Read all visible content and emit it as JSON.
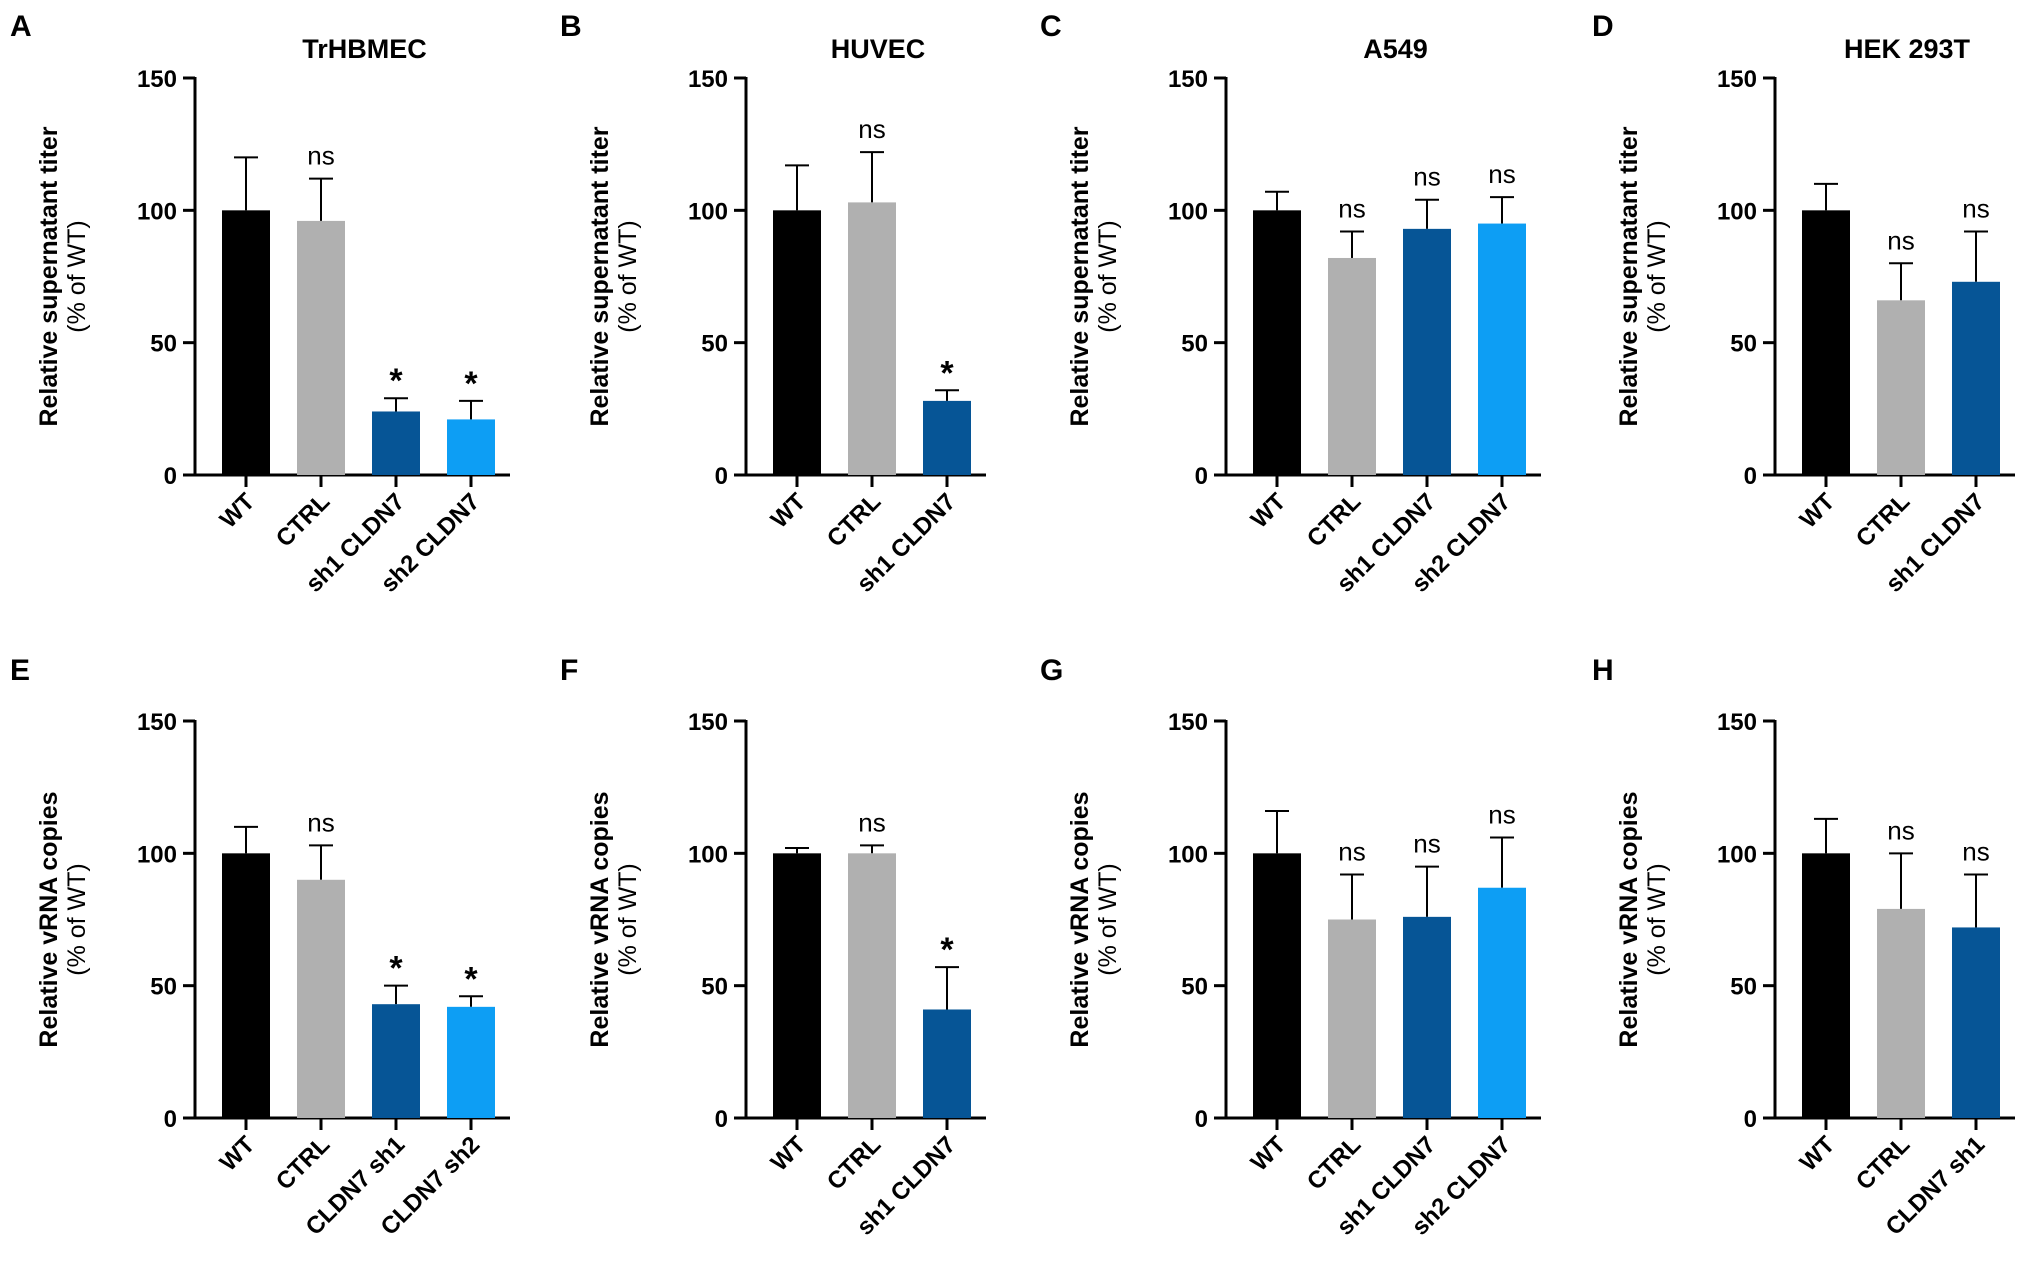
{
  "chart_data": [
    {
      "id": "A",
      "type": "bar",
      "title": "TrHBMEC",
      "ylabel": "Relative supernatant titer",
      "ylabel_sub": "(% of WT)",
      "ylim": [
        0,
        150
      ],
      "yticks": [
        0,
        50,
        100,
        150
      ],
      "categories": [
        "WT",
        "CTRL",
        "sh1 CLDN7",
        "sh2 CLDN7"
      ],
      "values": [
        100,
        96,
        24,
        21
      ],
      "errors": [
        20,
        16,
        5,
        7
      ],
      "colors": [
        "#000000",
        "#b0b0b0",
        "#065596",
        "#0d9ef4"
      ],
      "significance": [
        "",
        "ns",
        "*",
        "*"
      ]
    },
    {
      "id": "B",
      "type": "bar",
      "title": "HUVEC",
      "ylabel": "Relative supernatant titer",
      "ylabel_sub": "(% of WT)",
      "ylim": [
        0,
        150
      ],
      "yticks": [
        0,
        50,
        100,
        150
      ],
      "categories": [
        "WT",
        "CTRL",
        "sh1 CLDN7"
      ],
      "values": [
        100,
        103,
        28
      ],
      "errors": [
        17,
        19,
        4
      ],
      "colors": [
        "#000000",
        "#b0b0b0",
        "#065596"
      ],
      "significance": [
        "",
        "ns",
        "*"
      ]
    },
    {
      "id": "C",
      "type": "bar",
      "title": "A549",
      "ylabel": "Relative supernatant titer",
      "ylabel_sub": "(% of WT)",
      "ylim": [
        0,
        150
      ],
      "yticks": [
        0,
        50,
        100,
        150
      ],
      "categories": [
        "WT",
        "CTRL",
        "sh1 CLDN7",
        "sh2 CLDN7"
      ],
      "values": [
        100,
        82,
        93,
        95
      ],
      "errors": [
        7,
        10,
        11,
        10
      ],
      "colors": [
        "#000000",
        "#b0b0b0",
        "#065596",
        "#0d9ef4"
      ],
      "significance": [
        "",
        "ns",
        "ns",
        "ns"
      ]
    },
    {
      "id": "D",
      "type": "bar",
      "title": "HEK 293T",
      "ylabel": "Relative supernatant titer",
      "ylabel_sub": "(% of WT)",
      "ylim": [
        0,
        150
      ],
      "yticks": [
        0,
        50,
        100,
        150
      ],
      "categories": [
        "WT",
        "CTRL",
        "sh1 CLDN7"
      ],
      "values": [
        100,
        66,
        73
      ],
      "errors": [
        10,
        14,
        19
      ],
      "colors": [
        "#000000",
        "#b0b0b0",
        "#065596"
      ],
      "significance": [
        "",
        "ns",
        "ns"
      ]
    },
    {
      "id": "E",
      "type": "bar",
      "title": "",
      "ylabel": "Relative vRNA copies",
      "ylabel_sub": "(% of WT)",
      "ylim": [
        0,
        150
      ],
      "yticks": [
        0,
        50,
        100,
        150
      ],
      "categories": [
        "WT",
        "CTRL",
        "CLDN7 sh1",
        "CLDN7 sh2"
      ],
      "values": [
        100,
        90,
        43,
        42
      ],
      "errors": [
        10,
        13,
        7,
        4
      ],
      "colors": [
        "#000000",
        "#b0b0b0",
        "#065596",
        "#0d9ef4"
      ],
      "significance": [
        "",
        "ns",
        "*",
        "*"
      ]
    },
    {
      "id": "F",
      "type": "bar",
      "title": "",
      "ylabel": "Relative vRNA copies",
      "ylabel_sub": "(% of WT)",
      "ylim": [
        0,
        150
      ],
      "yticks": [
        0,
        50,
        100,
        150
      ],
      "categories": [
        "WT",
        "CTRL",
        "sh1 CLDN7"
      ],
      "values": [
        100,
        100,
        41
      ],
      "errors": [
        2,
        3,
        16
      ],
      "colors": [
        "#000000",
        "#b0b0b0",
        "#065596"
      ],
      "significance": [
        "",
        "ns",
        "*"
      ]
    },
    {
      "id": "G",
      "type": "bar",
      "title": "",
      "ylabel": "Relative vRNA copies",
      "ylabel_sub": "(% of WT)",
      "ylim": [
        0,
        150
      ],
      "yticks": [
        0,
        50,
        100,
        150
      ],
      "categories": [
        "WT",
        "CTRL",
        "sh1 CLDN7",
        "sh2 CLDN7"
      ],
      "values": [
        100,
        75,
        76,
        87
      ],
      "errors": [
        16,
        17,
        19,
        19
      ],
      "colors": [
        "#000000",
        "#b0b0b0",
        "#065596",
        "#0d9ef4"
      ],
      "significance": [
        "",
        "ns",
        "ns",
        "ns"
      ]
    },
    {
      "id": "H",
      "type": "bar",
      "title": "",
      "ylabel": "Relative vRNA copies",
      "ylabel_sub": "(% of WT)",
      "ylim": [
        0,
        150
      ],
      "yticks": [
        0,
        50,
        100,
        150
      ],
      "categories": [
        "WT",
        "CTRL",
        "CLDN7 sh1"
      ],
      "values": [
        100,
        79,
        72
      ],
      "errors": [
        13,
        21,
        20
      ],
      "colors": [
        "#000000",
        "#b0b0b0",
        "#065596"
      ],
      "significance": [
        "",
        "ns",
        "ns"
      ]
    }
  ]
}
